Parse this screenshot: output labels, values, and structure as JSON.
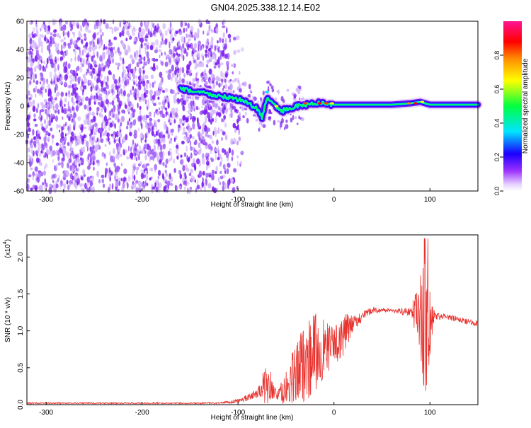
{
  "title": "GN04.2025.338.12.14.E02",
  "chart_data": [
    {
      "type": "heatmap",
      "xlabel": "Height of straight line (km)",
      "ylabel": "Frequency (Hz)",
      "xlim": [
        -320,
        150
      ],
      "ylim": [
        -60,
        60
      ],
      "xticks": [
        -300,
        -200,
        -100,
        0,
        100
      ],
      "yticks": [
        -60,
        -40,
        -20,
        0,
        20,
        40,
        60
      ],
      "colorbar": {
        "label": "Normalized spectral amplitude",
        "range": [
          0,
          1
        ],
        "ticks": [
          "0.0",
          "0.2",
          "0.4",
          "0.6",
          "0.8"
        ],
        "colors": [
          "#ffffff",
          "#e6d0ff",
          "#9b30ff",
          "#1a00ff",
          "#00e5ff",
          "#00ff40",
          "#ffff00",
          "#ff8c00",
          "#ff0000",
          "#ff1493"
        ]
      },
      "ridge": {
        "x": [
          -160,
          -140,
          -120,
          -100,
          -90,
          -80,
          -75,
          -70,
          -65,
          -60,
          -55,
          -50,
          -45,
          -40,
          -30,
          -20,
          -10,
          0,
          20,
          40,
          60,
          80,
          90,
          100,
          120,
          150
        ],
        "y": [
          12,
          10,
          7,
          5,
          2,
          -2,
          -8,
          6,
          2,
          0,
          -4,
          -2,
          -3,
          0,
          1,
          2,
          2,
          1,
          1,
          1,
          1,
          2,
          3,
          1,
          1,
          1
        ]
      },
      "noise_region": [
        -320,
        -130
      ]
    },
    {
      "type": "line",
      "xlabel": "Height of straight line (km)",
      "ylabel": "SNR (10 * v/v)",
      "scale_note": "(x10",
      "scale_exp": "4",
      "xlim": [
        -320,
        150
      ],
      "ylim": [
        0,
        2.3
      ],
      "xticks": [
        -300,
        -200,
        -100,
        0,
        100
      ],
      "yticks": [
        "0.0",
        "0.5",
        "1.0",
        "1.5",
        "2.0"
      ],
      "color": "#e8322e",
      "envelope": {
        "x": [
          -320,
          -120,
          -100,
          -90,
          -80,
          -70,
          -65,
          -60,
          -50,
          -40,
          -30,
          -20,
          -10,
          0,
          10,
          20,
          30,
          40,
          60,
          80,
          90,
          95,
          100,
          105,
          120,
          150
        ],
        "y": [
          0.02,
          0.02,
          0.05,
          0.1,
          0.15,
          0.3,
          0.25,
          0.12,
          0.2,
          0.4,
          0.6,
          0.7,
          0.75,
          0.8,
          0.95,
          1.1,
          1.2,
          1.28,
          1.28,
          1.25,
          1.25,
          1.2,
          1.2,
          1.2,
          1.18,
          1.1
        ]
      },
      "spread": {
        "x": [
          -320,
          -120,
          -100,
          -80,
          -70,
          -60,
          -50,
          -40,
          -30,
          -20,
          -10,
          0,
          10,
          20,
          40,
          60,
          80,
          90,
          95,
          100,
          105,
          120,
          150
        ],
        "y": [
          0.01,
          0.01,
          0.03,
          0.06,
          0.3,
          0.05,
          0.25,
          0.45,
          0.55,
          0.55,
          0.4,
          0.25,
          0.3,
          0.1,
          0.04,
          0.03,
          0.06,
          0.5,
          1.0,
          0.5,
          0.05,
          0.04,
          0.04
        ]
      }
    }
  ]
}
